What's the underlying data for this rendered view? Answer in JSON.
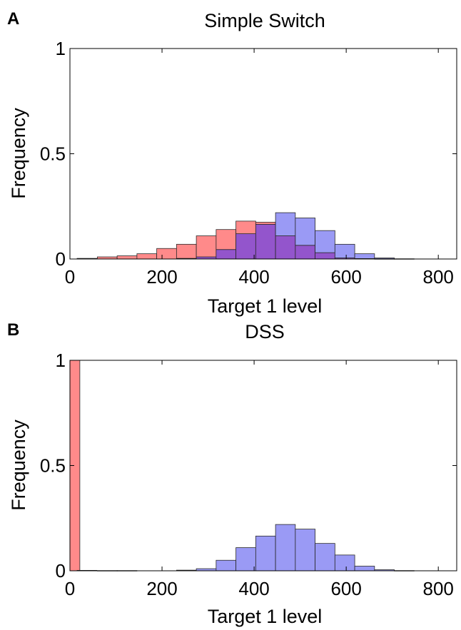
{
  "figure": {
    "panel_a": "A",
    "panel_b": "B"
  },
  "colors": {
    "red_fill": "#ff8a8a",
    "blue_fill": "#9a9af5",
    "overlap_fill": "#9355cc",
    "edge": "#2a2a2a"
  },
  "chart_data": [
    {
      "type": "bar",
      "panel": "A",
      "title": "Simple Switch",
      "xlabel": "Target 1 level",
      "ylabel": "Frequency",
      "xlim": [
        0,
        840
      ],
      "ylim": [
        0,
        1
      ],
      "xticks": [
        "0",
        "200",
        "400",
        "600",
        "800"
      ],
      "yticks": [
        "0",
        "0.5",
        "1"
      ],
      "bin_width": 43,
      "x": [
        37,
        81,
        124,
        167,
        210,
        253,
        296,
        339,
        382,
        425,
        468,
        511,
        554,
        597,
        640,
        683,
        726,
        769,
        812
      ],
      "series": [
        {
          "color": "red",
          "values": [
            0.003,
            0.01,
            0.015,
            0.025,
            0.05,
            0.07,
            0.11,
            0.14,
            0.18,
            0.175,
            0.11,
            0.065,
            0.03,
            0.005,
            0.002,
            0.001,
            0.001,
            0,
            0
          ]
        },
        {
          "color": "blue",
          "values": [
            0,
            0,
            0,
            0,
            0,
            0.003,
            0.01,
            0.045,
            0.12,
            0.165,
            0.22,
            0.195,
            0.135,
            0.07,
            0.025,
            0.005,
            0.001,
            0,
            0
          ]
        }
      ]
    },
    {
      "type": "bar",
      "panel": "B",
      "title": "DSS",
      "xlabel": "Target 1 level",
      "ylabel": "Frequency",
      "xlim": [
        0,
        840
      ],
      "ylim": [
        0,
        1
      ],
      "xticks": [
        "0",
        "200",
        "400",
        "600",
        "800"
      ],
      "yticks": [
        "0",
        "0.5",
        "1"
      ],
      "bin_width": 43,
      "x": [
        0,
        37,
        81,
        124,
        167,
        210,
        253,
        296,
        339,
        382,
        425,
        468,
        511,
        554,
        597,
        640,
        683,
        726,
        769,
        812
      ],
      "series": [
        {
          "color": "red",
          "values": [
            1.0,
            0.002,
            0.001,
            0.001,
            0,
            0,
            0,
            0,
            0,
            0,
            0,
            0,
            0,
            0,
            0,
            0,
            0,
            0,
            0,
            0
          ]
        },
        {
          "color": "blue",
          "values": [
            0,
            0,
            0,
            0,
            0,
            0,
            0.003,
            0.01,
            0.05,
            0.11,
            0.165,
            0.22,
            0.198,
            0.13,
            0.075,
            0.022,
            0.005,
            0.001,
            0,
            0
          ]
        }
      ]
    }
  ]
}
